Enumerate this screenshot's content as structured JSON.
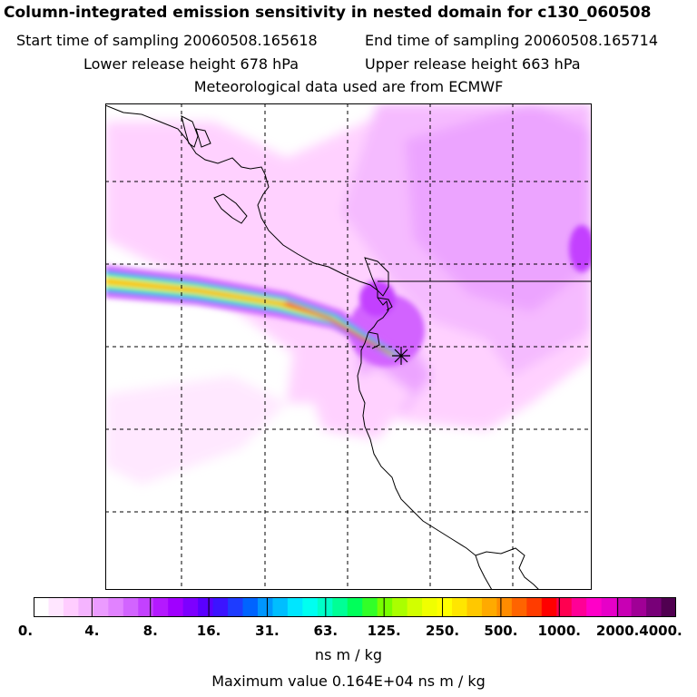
{
  "header": {
    "title": "Column-integrated emission sensitivity in nested domain for c130_060508",
    "start_label": "Start time of sampling 20060508.165618",
    "end_label": "End time of sampling 20060508.165714",
    "lower_label": "Lower release height  678 hPa",
    "upper_label": "Upper release height  663 hPa",
    "met_label": "Meteorological data used are from ECMWF"
  },
  "colorbar": {
    "tick_labels": [
      "0.",
      "4.",
      "8.",
      "16.",
      "31.",
      "63.",
      "125.",
      "250.",
      "500.",
      "1000.",
      "2000.",
      "4000."
    ],
    "colors": [
      "#ffffff",
      "#ffe6ff",
      "#ffcdff",
      "#f5b4ff",
      "#eb9bff",
      "#e182ff",
      "#d264ff",
      "#c341ff",
      "#b419ff",
      "#a000ff",
      "#7d00ff",
      "#5a00ff",
      "#3c14ff",
      "#1e3cff",
      "#0064ff",
      "#0096ff",
      "#00beff",
      "#00e6ff",
      "#00fff0",
      "#00ffc8",
      "#00ff96",
      "#00ff5a",
      "#32ff28",
      "#78ff00",
      "#aaff00",
      "#d2ff00",
      "#f0ff00",
      "#ffff00",
      "#ffe600",
      "#ffc800",
      "#ffaa00",
      "#ff8c00",
      "#ff6400",
      "#ff3c00",
      "#ff0000",
      "#ff0050",
      "#ff0096",
      "#ff00c8",
      "#e600c8",
      "#c800b4",
      "#a00096",
      "#780078",
      "#500050"
    ],
    "units": "ns m / kg"
  },
  "footer": {
    "max_value": "Maximum value  0.164E+04 ns m / kg"
  },
  "map": {
    "release_marker_icon": "asterisk-release-point-icon",
    "plume_colors": [
      "#ffcdff",
      "#f5b4ff",
      "#d264ff",
      "#0096ff",
      "#00ff96",
      "#ffff00",
      "#ff8c00",
      "#ff0000"
    ]
  }
}
